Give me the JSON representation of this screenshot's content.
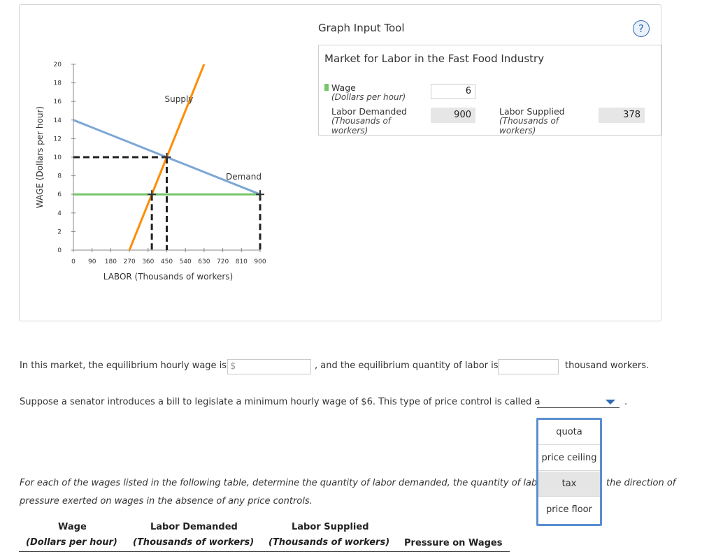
{
  "graph": {
    "ylabel": "WAGE (Dollars per hour)",
    "xlabel": "LABOR (Thousands of workers)",
    "x_ticks": [
      "0",
      "90",
      "180",
      "270",
      "360",
      "450",
      "540",
      "630",
      "720",
      "810",
      "900"
    ],
    "y_ticks": [
      "0",
      "2",
      "4",
      "6",
      "8",
      "10",
      "12",
      "14",
      "16",
      "18",
      "20"
    ],
    "supply_label": "Supply",
    "demand_label": "Demand",
    "colors": {
      "supply": "#ff8c00",
      "demand": "#7ba7d6",
      "wage": "#77c56b",
      "dashed": "#222222"
    }
  },
  "chart_data": {
    "type": "line",
    "xlim": [
      0,
      900
    ],
    "ylim": [
      0,
      20
    ],
    "series": [
      {
        "name": "Supply",
        "points": [
          [
            270,
            0
          ],
          [
            630,
            20
          ]
        ]
      },
      {
        "name": "Demand",
        "points": [
          [
            0,
            14
          ],
          [
            900,
            6
          ]
        ]
      },
      {
        "name": "Wage",
        "points": [
          [
            0,
            6
          ],
          [
            900,
            6
          ]
        ]
      }
    ],
    "equilibrium_marker": [
      450,
      10
    ],
    "wage_markers": [
      [
        378,
        6
      ],
      [
        900,
        6
      ]
    ],
    "guides": {
      "equilibrium": [
        450,
        10
      ],
      "supply_at_wage": [
        378,
        6
      ],
      "demand_at_wage": [
        900,
        6
      ]
    }
  },
  "tool": {
    "title": "Graph Input Tool",
    "help_icon": "?",
    "box_title": "Market for Labor in the Fast Food Industry",
    "wage_label": "Wage",
    "wage_sub": "(Dollars per hour)",
    "wage_value": "6",
    "ld_label": "Labor Demanded",
    "ld_sub1": "(Thousands of",
    "ld_sub2": "workers)",
    "ld_value": "900",
    "ls_label": "Labor Supplied",
    "ls_sub1": "(Thousands of",
    "ls_sub2": "workers)",
    "ls_value": "378"
  },
  "questions": {
    "q1_prefix": "In this market, the equilibrium hourly wage is",
    "q1_dollar": "$",
    "q1_mid": ", and the equilibrium quantity of labor is",
    "q1_suffix": "thousand workers.",
    "q2": "Suppose a senator introduces a bill to legislate a minimum hourly wage of $6. This type of price control is called a",
    "q2_period": ".",
    "q3_line1": "For each of the wages listed in the following table, determine the quantity of labor demanded, the quantity of labo",
    "q3_line1_end": "the direction of",
    "q3_line2": "pressure exerted on wages in the absence of any price controls."
  },
  "dropdown": {
    "options": [
      "quota",
      "price ceiling",
      "tax",
      "price floor"
    ],
    "highlighted": "tax"
  },
  "table_header": {
    "wage": "Wage",
    "wage_sub": "(Dollars per hour)",
    "ld": "Labor Demanded",
    "ld_sub": "(Thousands of workers)",
    "ls": "Labor Supplied",
    "ls_sub": "(Thousands of workers)",
    "pressure": "Pressure on Wages"
  }
}
